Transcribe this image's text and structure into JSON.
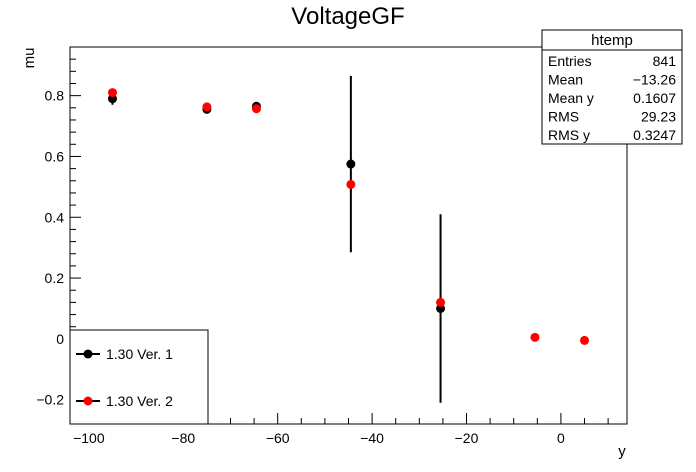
{
  "chart_data": {
    "type": "scatter",
    "title": "VoltageGF",
    "xlabel": "y",
    "ylabel": "mu",
    "xlim": [
      -104,
      14
    ],
    "ylim": [
      -0.28,
      0.96
    ],
    "x_ticks": [
      -100,
      -80,
      -60,
      -40,
      -20,
      0
    ],
    "y_ticks": [
      -0.2,
      0,
      0.2,
      0.4,
      0.6,
      0.8
    ],
    "grid": false,
    "legend_position": "bottom-left",
    "series": [
      {
        "name": "1.30 Ver. 1",
        "color": "#000000",
        "points": [
          {
            "x": -95,
            "y": 0.79,
            "err": 0.02
          },
          {
            "x": -75,
            "y": 0.755,
            "err": 0.01
          },
          {
            "x": -64.5,
            "y": 0.765,
            "err": 0.01
          },
          {
            "x": -44.5,
            "y": 0.575,
            "err": 0.29
          },
          {
            "x": -25.5,
            "y": 0.1,
            "err": 0.31
          }
        ]
      },
      {
        "name": "1.30 Ver. 2",
        "color": "#ff0000",
        "points": [
          {
            "x": -95,
            "y": 0.81
          },
          {
            "x": -75,
            "y": 0.763
          },
          {
            "x": -64.5,
            "y": 0.757
          },
          {
            "x": -44.5,
            "y": 0.508
          },
          {
            "x": -25.5,
            "y": 0.12
          },
          {
            "x": -5.5,
            "y": 0.005
          },
          {
            "x": 5,
            "y": -0.005
          }
        ]
      }
    ],
    "stats_box": {
      "title": "htemp",
      "rows": [
        {
          "label": "Entries",
          "value": "841"
        },
        {
          "label": "Mean",
          "value": "−13.26"
        },
        {
          "label": "Mean y",
          "value": "0.1607"
        },
        {
          "label": "RMS",
          "value": "29.23"
        },
        {
          "label": "RMS y",
          "value": "0.3247"
        }
      ]
    }
  }
}
